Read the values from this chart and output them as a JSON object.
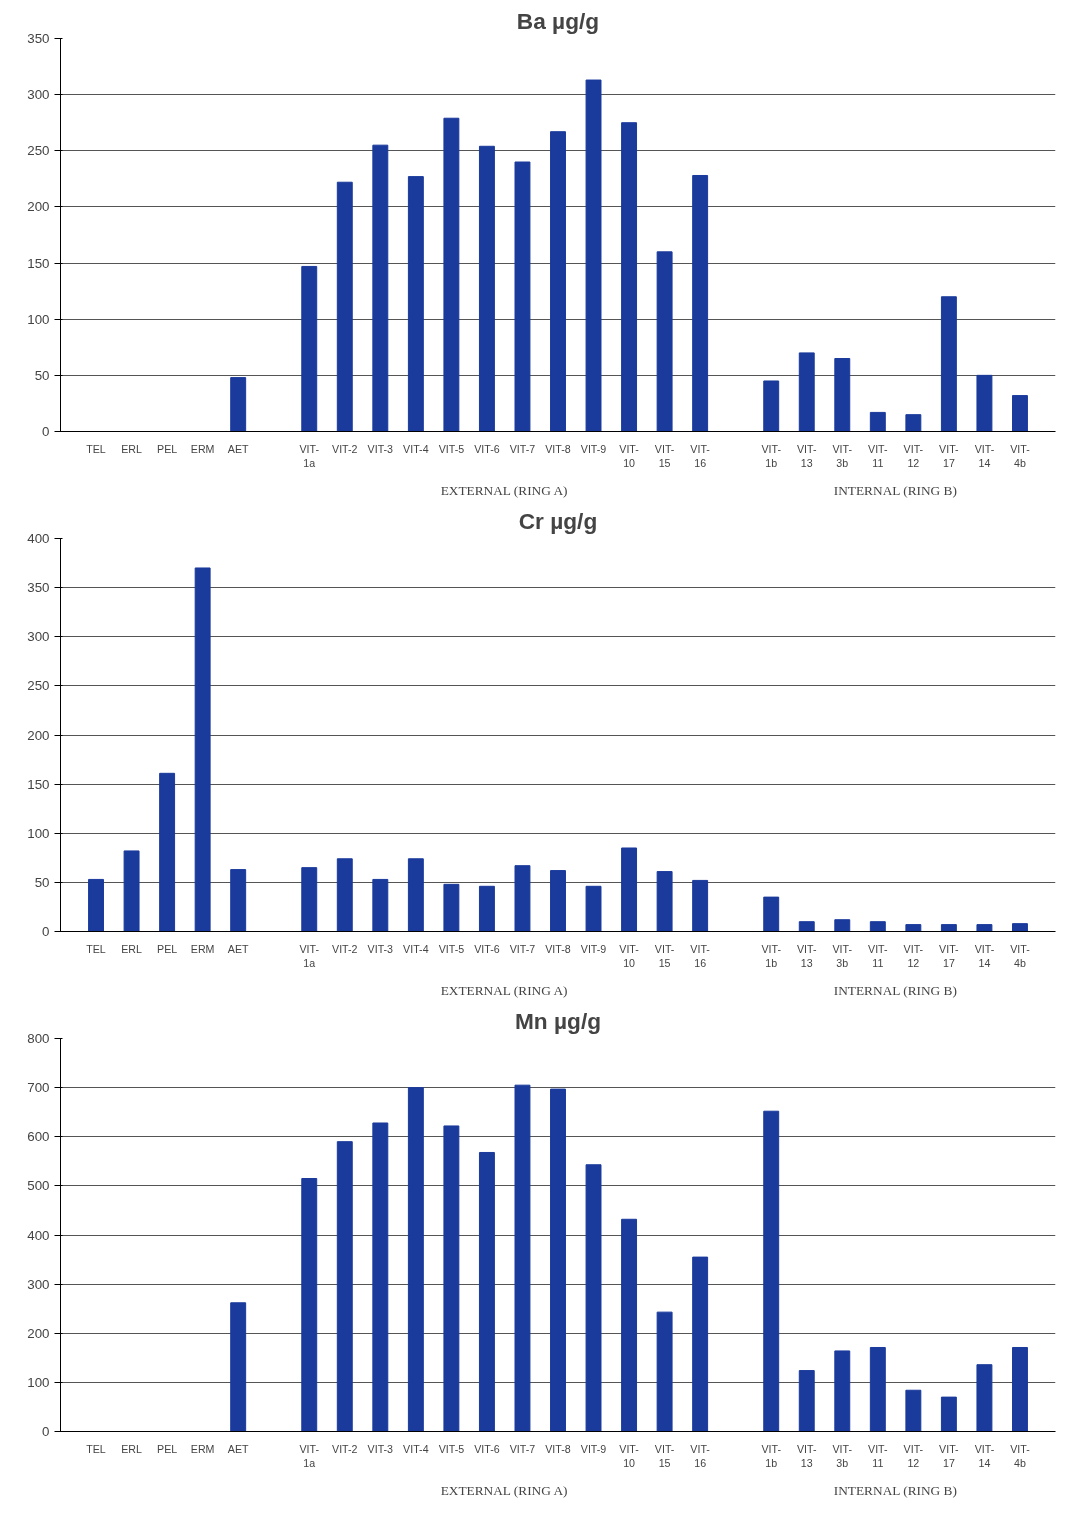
{
  "chart_data": [
    {
      "type": "bar",
      "title": "Ba µg/g",
      "categories": [
        "TEL",
        "ERL",
        "PEL",
        "ERM",
        "AET",
        null,
        "VIT-1a",
        "VIT-2",
        "VIT-3",
        "VIT-4",
        "VIT-5",
        "VIT-6",
        "VIT-7",
        "VIT-8",
        "VIT-9",
        "VIT-10",
        "VIT-15",
        "VIT-16",
        null,
        "VIT-1b",
        "VIT-13",
        "VIT-3b",
        "VIT-11",
        "VIT-12",
        "VIT-17",
        "VIT-14",
        "VIT-4b"
      ],
      "values": [
        null,
        null,
        null,
        null,
        48,
        null,
        147,
        222,
        255,
        227,
        279,
        254,
        240,
        267,
        313,
        275,
        160,
        228,
        null,
        45,
        70,
        65,
        17,
        15,
        120,
        50,
        32
      ],
      "color": "#1a3a9c",
      "ylim": [
        0,
        350
      ],
      "yticks": [
        0,
        50,
        100,
        150,
        200,
        250,
        300,
        350
      ],
      "grid": "y",
      "annotations": [
        "EXTERNAL (RING A)",
        "INTERNAL (RING B)"
      ]
    },
    {
      "type": "bar",
      "title": "Cr µg/g",
      "categories": [
        "TEL",
        "ERL",
        "PEL",
        "ERM",
        "AET",
        null,
        "VIT-1a",
        "VIT-2",
        "VIT-3",
        "VIT-4",
        "VIT-5",
        "VIT-6",
        "VIT-7",
        "VIT-8",
        "VIT-9",
        "VIT-10",
        "VIT-15",
        "VIT-16",
        null,
        "VIT-1b",
        "VIT-13",
        "VIT-3b",
        "VIT-11",
        "VIT-12",
        "VIT-17",
        "VIT-14",
        "VIT-4b"
      ],
      "values": [
        53,
        82,
        161,
        370,
        63,
        null,
        65,
        74,
        53,
        74,
        48,
        46,
        67,
        62,
        46,
        85,
        61,
        52,
        null,
        35,
        10,
        12,
        10,
        7,
        7,
        7,
        8
      ],
      "color": "#1a3a9c",
      "ylim": [
        0,
        400
      ],
      "yticks": [
        0,
        50,
        100,
        150,
        200,
        250,
        300,
        350,
        400
      ],
      "grid": "y",
      "annotations": [
        "EXTERNAL (RING A)",
        "INTERNAL (RING B)"
      ]
    },
    {
      "type": "bar",
      "title": "Mn µg/g",
      "categories": [
        "TEL",
        "ERL",
        "PEL",
        "ERM",
        "AET",
        null,
        "VIT-1a",
        "VIT-2",
        "VIT-3",
        "VIT-4",
        "VIT-5",
        "VIT-6",
        "VIT-7",
        "VIT-8",
        "VIT-9",
        "VIT-10",
        "VIT-15",
        "VIT-16",
        null,
        "VIT-1b",
        "VIT-13",
        "VIT-3b",
        "VIT-11",
        "VIT-12",
        "VIT-17",
        "VIT-14",
        "VIT-4b"
      ],
      "values": [
        null,
        null,
        null,
        null,
        262,
        null,
        515,
        590,
        628,
        700,
        622,
        568,
        705,
        697,
        543,
        432,
        243,
        355,
        null,
        652,
        124,
        164,
        171,
        84,
        70,
        136,
        171
      ],
      "color": "#1a3a9c",
      "ylim": [
        0,
        800
      ],
      "yticks": [
        0,
        100,
        200,
        300,
        400,
        500,
        600,
        700,
        800
      ],
      "grid": "y",
      "annotations": [
        "EXTERNAL (RING A)",
        "INTERNAL (RING B)"
      ]
    }
  ]
}
